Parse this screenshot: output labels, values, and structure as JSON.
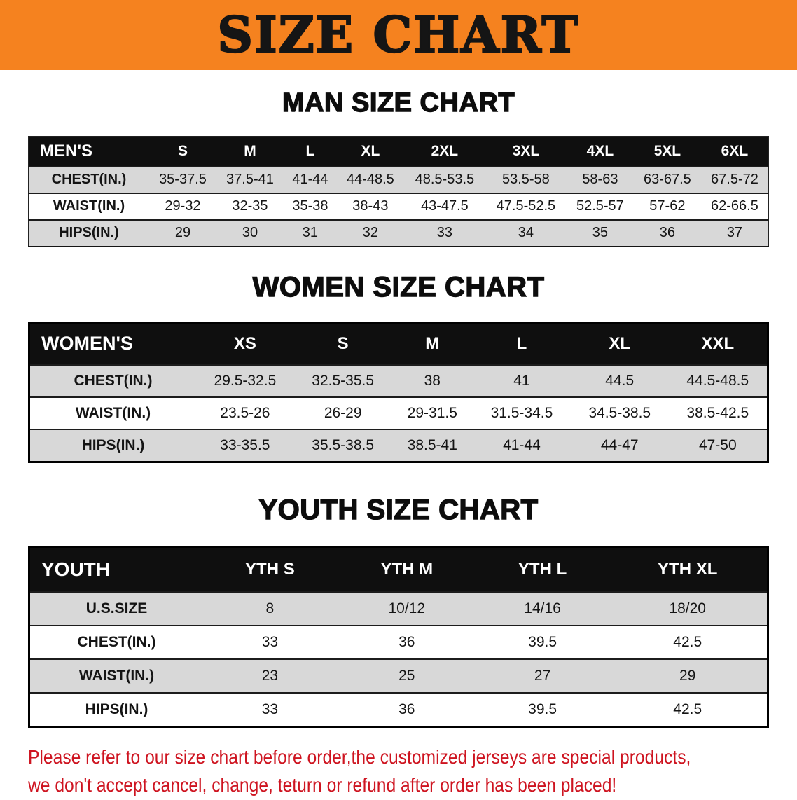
{
  "colors": {
    "banner_bg": "#f5821f",
    "title_color": "#151515",
    "header_bg": "#0f0f0f",
    "row_shade": "#d8d8d8",
    "disclaimer_color": "#ce1420"
  },
  "banner": {
    "title": "SIZE CHART"
  },
  "sections": [
    {
      "heading": "MAN SIZE CHART",
      "table": {
        "header_label": "MEN'S",
        "columns": [
          "S",
          "M",
          "L",
          "XL",
          "2XL",
          "3XL",
          "4XL",
          "5XL",
          "6XL"
        ],
        "rows": [
          {
            "label": "CHEST(IN.)",
            "values": [
              "35-37.5",
              "37.5-41",
              "41-44",
              "44-48.5",
              "48.5-53.5",
              "53.5-58",
              "58-63",
              "63-67.5",
              "67.5-72"
            ]
          },
          {
            "label": "WAIST(IN.)",
            "values": [
              "29-32",
              "32-35",
              "35-38",
              "38-43",
              "43-47.5",
              "47.5-52.5",
              "52.5-57",
              "57-62",
              "62-66.5"
            ]
          },
          {
            "label": "HIPS(IN.)",
            "values": [
              "29",
              "30",
              "31",
              "32",
              "33",
              "34",
              "35",
              "36",
              "37"
            ]
          }
        ]
      }
    },
    {
      "heading": "WOMEN SIZE CHART",
      "table": {
        "header_label": "WOMEN'S",
        "columns": [
          "XS",
          "S",
          "M",
          "L",
          "XL",
          "XXL"
        ],
        "rows": [
          {
            "label": "CHEST(IN.)",
            "values": [
              "29.5-32.5",
              "32.5-35.5",
              "38",
              "41",
              "44.5",
              "44.5-48.5"
            ]
          },
          {
            "label": "WAIST(IN.)",
            "values": [
              "23.5-26",
              "26-29",
              "29-31.5",
              "31.5-34.5",
              "34.5-38.5",
              "38.5-42.5"
            ]
          },
          {
            "label": "HIPS(IN.)",
            "values": [
              "33-35.5",
              "35.5-38.5",
              "38.5-41",
              "41-44",
              "44-47",
              "47-50"
            ]
          }
        ]
      }
    },
    {
      "heading": "YOUTH SIZE CHART",
      "table": {
        "header_label": "YOUTH",
        "columns": [
          "YTH S",
          "YTH M",
          "YTH L",
          "YTH XL"
        ],
        "rows": [
          {
            "label": "U.S.SIZE",
            "values": [
              "8",
              "10/12",
              "14/16",
              "18/20"
            ]
          },
          {
            "label": "CHEST(IN.)",
            "values": [
              "33",
              "36",
              "39.5",
              "42.5"
            ]
          },
          {
            "label": "WAIST(IN.)",
            "values": [
              "23",
              "25",
              "27",
              "29"
            ]
          },
          {
            "label": "HIPS(IN.)",
            "values": [
              "33",
              "36",
              "39.5",
              "42.5"
            ]
          }
        ]
      }
    }
  ],
  "disclaimer": {
    "line1": "Please refer to our size chart before order,the customized jerseys are special products,",
    "line2": "we don't accept cancel, change, teturn or refund after order has been placed!"
  }
}
